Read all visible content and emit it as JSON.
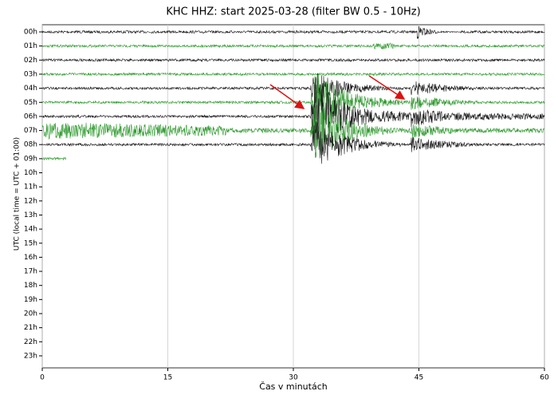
{
  "chart_data": {
    "type": "helicorder",
    "title": "KHC HHZ: start 2025-03-28 (filter BW 0.5 - 10Hz)",
    "xlabel": "Čas v minutách",
    "ylabel": "UTC (local time = UTC + 01:00)",
    "categories": [
      "00h",
      "01h",
      "02h",
      "03h",
      "04h",
      "05h",
      "06h",
      "07h",
      "08h",
      "09h",
      "10h",
      "11h",
      "12h",
      "13h",
      "14h",
      "15h",
      "16h",
      "17h",
      "18h",
      "19h",
      "20h",
      "21h",
      "22h",
      "23h"
    ],
    "end": [
      60,
      60,
      60,
      60,
      60,
      60,
      60,
      60,
      60,
      2.9,
      null,
      null,
      null,
      null,
      null,
      null,
      null,
      null,
      null,
      null,
      null,
      null,
      null,
      null
    ],
    "trace_colors": [
      "#1a1a1a",
      "#2e9a2e"
    ],
    "xlim": [
      0,
      60
    ],
    "xticks": [
      0,
      15,
      30,
      45,
      60
    ],
    "grid": true
  }
}
